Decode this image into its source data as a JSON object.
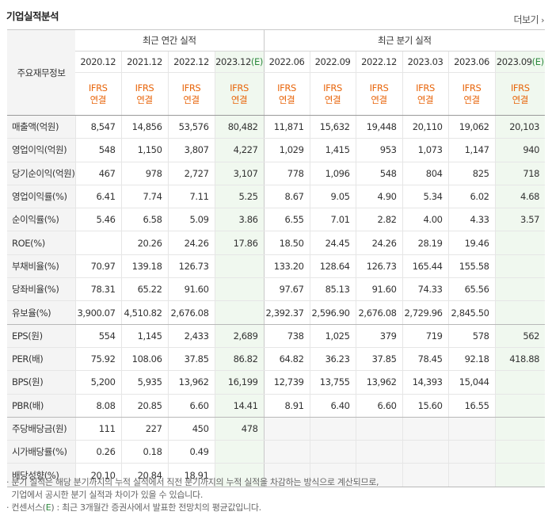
{
  "section_title": "기업실적분석",
  "more_label": "더보기",
  "header": {
    "row_label": "주요재무정보",
    "annual_group": "최근 연간 실적",
    "quarter_group": "최근 분기 실적",
    "periods": [
      "2020.12",
      "2021.12",
      "2022.12",
      "2023.12(E)",
      "2022.06",
      "2022.09",
      "2022.12",
      "2023.03",
      "2023.06",
      "2023.09(E)"
    ],
    "ifrs_line1": "IFRS",
    "ifrs_line2": "연결"
  },
  "rows": [
    {
      "label": "매출액(억원)",
      "values": [
        "8,547",
        "14,856",
        "53,576",
        "80,482",
        "11,871",
        "15,632",
        "19,448",
        "20,110",
        "19,062",
        "20,103"
      ]
    },
    {
      "label": "영업이익(억원)",
      "values": [
        "548",
        "1,150",
        "3,807",
        "4,227",
        "1,029",
        "1,415",
        "953",
        "1,073",
        "1,147",
        "940"
      ]
    },
    {
      "label": "당기순이익(억원)",
      "values": [
        "467",
        "978",
        "2,727",
        "3,107",
        "778",
        "1,096",
        "548",
        "804",
        "825",
        "718"
      ]
    },
    {
      "label": "영업이익률(%)",
      "values": [
        "6.41",
        "7.74",
        "7.11",
        "5.25",
        "8.67",
        "9.05",
        "4.90",
        "5.34",
        "6.02",
        "4.68"
      ]
    },
    {
      "label": "순이익률(%)",
      "values": [
        "5.46",
        "6.58",
        "5.09",
        "3.86",
        "6.55",
        "7.01",
        "2.82",
        "4.00",
        "4.33",
        "3.57"
      ]
    },
    {
      "label": "ROE(%)",
      "values": [
        "",
        "20.26",
        "24.26",
        "17.86",
        "18.50",
        "24.45",
        "24.26",
        "28.19",
        "19.46",
        ""
      ]
    },
    {
      "label": "부채비율(%)",
      "values": [
        "70.97",
        "139.18",
        "126.73",
        "",
        "133.20",
        "128.64",
        "126.73",
        "165.44",
        "155.58",
        ""
      ]
    },
    {
      "label": "당좌비율(%)",
      "values": [
        "78.31",
        "65.22",
        "91.60",
        "",
        "97.67",
        "85.13",
        "91.60",
        "74.33",
        "65.56",
        ""
      ]
    },
    {
      "label": "유보율(%)",
      "values": [
        "3,900.07",
        "4,510.82",
        "2,676.08",
        "",
        "2,392.37",
        "2,596.90",
        "2,676.08",
        "2,729.96",
        "2,845.50",
        ""
      ]
    },
    {
      "label": "EPS(원)",
      "values": [
        "554",
        "1,145",
        "2,433",
        "2,689",
        "738",
        "1,025",
        "379",
        "719",
        "578",
        "562"
      ]
    },
    {
      "label": "PER(배)",
      "values": [
        "75.92",
        "108.06",
        "37.85",
        "86.82",
        "64.82",
        "36.23",
        "37.85",
        "78.45",
        "92.18",
        "418.88"
      ]
    },
    {
      "label": "BPS(원)",
      "values": [
        "5,200",
        "5,935",
        "13,962",
        "16,199",
        "12,739",
        "13,755",
        "13,962",
        "14,393",
        "15,044",
        ""
      ]
    },
    {
      "label": "PBR(배)",
      "values": [
        "8.08",
        "20.85",
        "6.60",
        "14.41",
        "8.91",
        "6.40",
        "6.60",
        "15.60",
        "16.55",
        ""
      ]
    },
    {
      "label": "주당배당금(원)",
      "values": [
        "111",
        "227",
        "450",
        "478",
        "",
        "",
        "",
        "",
        "",
        ""
      ]
    },
    {
      "label": "시가배당률(%)",
      "values": [
        "0.26",
        "0.18",
        "0.49",
        "",
        "",
        "",
        "",
        "",
        "",
        ""
      ]
    },
    {
      "label": "배당성향(%)",
      "values": [
        "20.10",
        "20.84",
        "18.91",
        "",
        "",
        "",
        "",
        "",
        "",
        ""
      ]
    }
  ],
  "notes": {
    "line1": "분기 실적은 해당 분기까지의 누적 실적에서 직전 분기까지의 누적 실적을 차감하는 방식으로 계산되므로,",
    "line2": "기업에서 공시한 분기 실적과 차이가 있을 수 있습니다.",
    "line3_pre": "컨센서스(",
    "line3_e": "E",
    "line3_post": ") : 최근 3개월간 증권사에서 발표한 전망치의 평균값입니다."
  },
  "colors": {
    "ifrs": "#e8660c",
    "estimate_text": "#2e8a3f",
    "estimate_bg": "#f0f8ef",
    "label_bg": "#f4f4f4"
  }
}
